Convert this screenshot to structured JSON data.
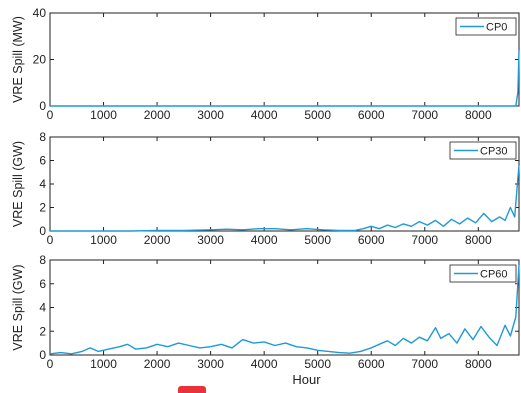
{
  "colors": {
    "series": "#1f9ad6",
    "axis": "#222222",
    "background": "#ffffff",
    "marker": "#e8333b"
  },
  "chart_data": [
    {
      "type": "line",
      "ylabel": "VRE Spill (MW)",
      "xlabel": "",
      "xlim": [
        0,
        8760
      ],
      "ylim": [
        0,
        40
      ],
      "xticks": [
        0,
        1000,
        2000,
        3000,
        4000,
        5000,
        6000,
        7000,
        8000
      ],
      "yticks": [
        0,
        20,
        40
      ],
      "grid": false,
      "legend_position": "top-right",
      "series": [
        {
          "name": "CP0",
          "x": [
            0,
            1000,
            2000,
            3000,
            4000,
            5000,
            6000,
            7000,
            8000,
            8700,
            8740,
            8760
          ],
          "y": [
            0,
            0,
            0,
            0,
            0,
            0,
            0,
            0,
            0,
            0,
            6,
            24
          ]
        }
      ]
    },
    {
      "type": "line",
      "ylabel": "VRE Spill (GW)",
      "xlabel": "",
      "xlim": [
        0,
        8760
      ],
      "ylim": [
        0,
        8
      ],
      "xticks": [
        0,
        1000,
        2000,
        3000,
        4000,
        5000,
        6000,
        7000,
        8000
      ],
      "yticks": [
        0,
        2,
        4,
        6,
        8
      ],
      "grid": false,
      "legend_position": "top-right",
      "series": [
        {
          "name": "CP30",
          "x": [
            0,
            500,
            1000,
            1500,
            2000,
            2500,
            3000,
            3300,
            3600,
            3900,
            4200,
            4500,
            4800,
            5100,
            5400,
            5700,
            5850,
            6000,
            6150,
            6300,
            6450,
            6600,
            6750,
            6900,
            7050,
            7200,
            7350,
            7500,
            7650,
            7800,
            7950,
            8100,
            8250,
            8400,
            8500,
            8600,
            8680,
            8720,
            8760
          ],
          "y": [
            0,
            0,
            0,
            0,
            0.05,
            0.05,
            0.1,
            0.15,
            0.1,
            0.2,
            0.2,
            0.1,
            0.2,
            0.1,
            0.05,
            0.05,
            0.2,
            0.4,
            0.2,
            0.5,
            0.3,
            0.6,
            0.4,
            0.8,
            0.5,
            0.9,
            0.4,
            1.0,
            0.6,
            1.1,
            0.7,
            1.5,
            0.8,
            1.2,
            0.9,
            2.0,
            1.2,
            3.5,
            5.6
          ]
        }
      ]
    },
    {
      "type": "line",
      "ylabel": "VRE Spill (GW)",
      "xlabel": "Hour",
      "xlim": [
        0,
        8760
      ],
      "ylim": [
        0,
        8
      ],
      "xticks": [
        0,
        1000,
        2000,
        3000,
        4000,
        5000,
        6000,
        7000,
        8000
      ],
      "yticks": [
        0,
        2,
        4,
        6,
        8
      ],
      "grid": false,
      "legend_position": "top-right",
      "series": [
        {
          "name": "CP60",
          "x": [
            0,
            200,
            400,
            600,
            750,
            900,
            1100,
            1300,
            1450,
            1600,
            1800,
            2000,
            2200,
            2400,
            2600,
            2800,
            3000,
            3200,
            3400,
            3600,
            3800,
            4000,
            4200,
            4400,
            4600,
            4800,
            5000,
            5200,
            5400,
            5600,
            5800,
            6000,
            6150,
            6300,
            6450,
            6600,
            6750,
            6900,
            7050,
            7200,
            7300,
            7450,
            7600,
            7750,
            7900,
            8050,
            8200,
            8350,
            8500,
            8600,
            8700,
            8760
          ],
          "y": [
            0.1,
            0.2,
            0.1,
            0.3,
            0.6,
            0.3,
            0.5,
            0.7,
            0.9,
            0.5,
            0.6,
            0.9,
            0.7,
            1.0,
            0.8,
            0.6,
            0.7,
            0.9,
            0.6,
            1.3,
            1.0,
            1.1,
            0.8,
            1.0,
            0.7,
            0.6,
            0.4,
            0.3,
            0.2,
            0.15,
            0.3,
            0.6,
            0.9,
            1.2,
            0.8,
            1.4,
            1.0,
            1.5,
            1.2,
            2.3,
            1.4,
            1.8,
            1.0,
            2.2,
            1.3,
            2.4,
            1.5,
            0.8,
            2.5,
            1.6,
            3.2,
            7.6
          ]
        }
      ]
    }
  ]
}
